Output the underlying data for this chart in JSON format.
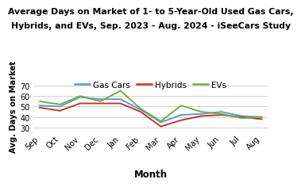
{
  "title_line1": "Average Days on Market of 1- to 5-Year-Old Used Gas Cars,",
  "title_line2": "Hybrids, and EVs, Sep. 2023 - Aug. 2024 - iSeeCars Study",
  "xlabel": "Month",
  "ylabel": "Avg. Days on Market",
  "months": [
    "Sep",
    "Oct",
    "Nov",
    "Dec",
    "Jan",
    "Feb",
    "Mar",
    "Apr",
    "May",
    "Jun",
    "Jul",
    "Aug"
  ],
  "gas_cars": [
    51,
    50,
    59,
    57,
    57,
    47,
    35,
    42,
    43,
    45,
    41,
    40
  ],
  "hybrids": [
    49,
    46,
    53,
    53,
    53,
    45,
    31,
    37,
    41,
    42,
    40,
    38
  ],
  "evs": [
    55,
    52,
    60,
    55,
    65,
    48,
    36,
    51,
    45,
    43,
    39,
    40
  ],
  "gas_color": "#5b9bd5",
  "hybrid_color": "#c0392b",
  "ev_color": "#70ad47",
  "ylim": [
    27,
    73
  ],
  "yticks": [
    30,
    40,
    50,
    60,
    70
  ],
  "legend_labels": [
    "Gas Cars",
    "Hybrids",
    "EVs"
  ],
  "title_fontsize": 7.8,
  "axis_label_fontsize": 8.5,
  "ylabel_fontsize": 7.2,
  "tick_fontsize": 7.0,
  "legend_fontsize": 7.5,
  "background_color": "#ffffff",
  "grid_color": "#d0d0d0"
}
